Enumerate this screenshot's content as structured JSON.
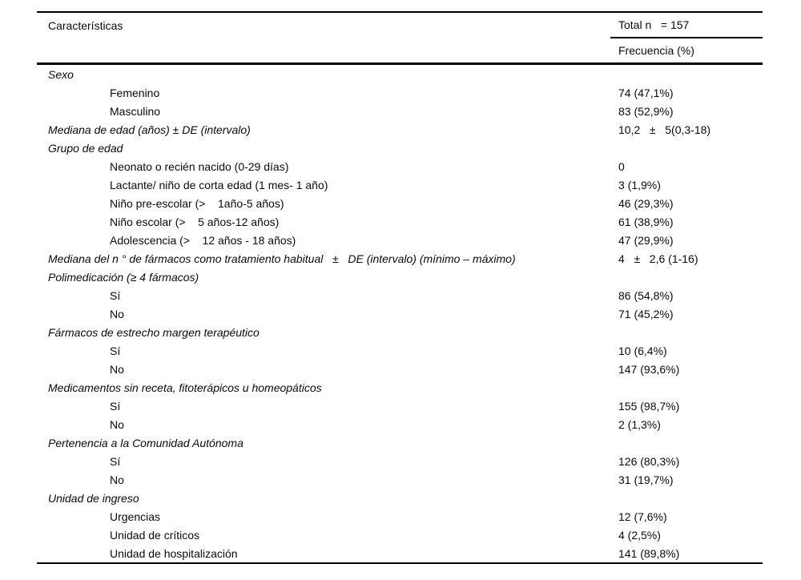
{
  "table": {
    "header": {
      "characteristics_label": "Características",
      "total_label": "Total n   = 157",
      "frequency_label": "Frecuencia (%)"
    },
    "rows": [
      {
        "style": "section",
        "label": "Sexo",
        "value": ""
      },
      {
        "style": "item",
        "label": "Femenino",
        "value": "74 (47,1%)"
      },
      {
        "style": "item",
        "label": "Masculino",
        "value": "83 (52,9%)"
      },
      {
        "style": "section",
        "label": "Mediana de edad (años) ± DE (intervalo)",
        "value": "10,2   ±   5(0,3-18)"
      },
      {
        "style": "section",
        "label": "Grupo de edad",
        "value": ""
      },
      {
        "style": "item",
        "label": "Neonato o recién nacido (0-29 días)",
        "value": "0"
      },
      {
        "style": "item",
        "label": "Lactante/ niño de corta edad (1 mes- 1 año)",
        "value": "3 (1,9%)"
      },
      {
        "style": "item",
        "label": "Niño pre-escolar (>    1año-5 años)",
        "value": "46 (29,3%)"
      },
      {
        "style": "item",
        "label": "Niño escolar (>    5 años-12 años)",
        "value": "61 (38,9%)"
      },
      {
        "style": "item",
        "label": "Adolescencia (>    12 años - 18 años)",
        "value": "47 (29,9%)"
      },
      {
        "style": "section",
        "label": "Mediana del n ° de fármacos como tratamiento habitual   ±   DE (intervalo) (mínimo – máximo)",
        "value": "4   ±   2,6 (1-16)"
      },
      {
        "style": "section",
        "label": "Polimedicación (≥ 4 fármacos)",
        "value": ""
      },
      {
        "style": "item",
        "label": "Sí",
        "value": "86 (54,8%)"
      },
      {
        "style": "item",
        "label": "No",
        "value": "71 (45,2%)"
      },
      {
        "style": "section",
        "label": "Fármacos de estrecho margen terapéutico",
        "value": ""
      },
      {
        "style": "item",
        "label": "Sí",
        "value": "10 (6,4%)"
      },
      {
        "style": "item",
        "label": "No",
        "value": "147 (93,6%)"
      },
      {
        "style": "section",
        "label": "Medicamentos sin receta, fitoterápicos u homeopáticos",
        "value": ""
      },
      {
        "style": "item",
        "label": "Sí",
        "value": "155 (98,7%)"
      },
      {
        "style": "item",
        "label": "No",
        "value": "2 (1,3%)"
      },
      {
        "style": "section",
        "label": "Pertenencia a la Comunidad Autónoma",
        "value": ""
      },
      {
        "style": "item",
        "label": "Sí",
        "value": "126 (80,3%)"
      },
      {
        "style": "item",
        "label": "No",
        "value": "31 (19,7%)"
      },
      {
        "style": "section",
        "label": "Unidad de ingreso",
        "value": ""
      },
      {
        "style": "item",
        "label": "Urgencias",
        "value": "12 (7,6%)"
      },
      {
        "style": "item",
        "label": "Unidad de críticos",
        "value": "4 (2,5%)"
      },
      {
        "style": "item",
        "label": "Unidad de hospitalización",
        "value": "141 (89,8%)"
      }
    ]
  }
}
